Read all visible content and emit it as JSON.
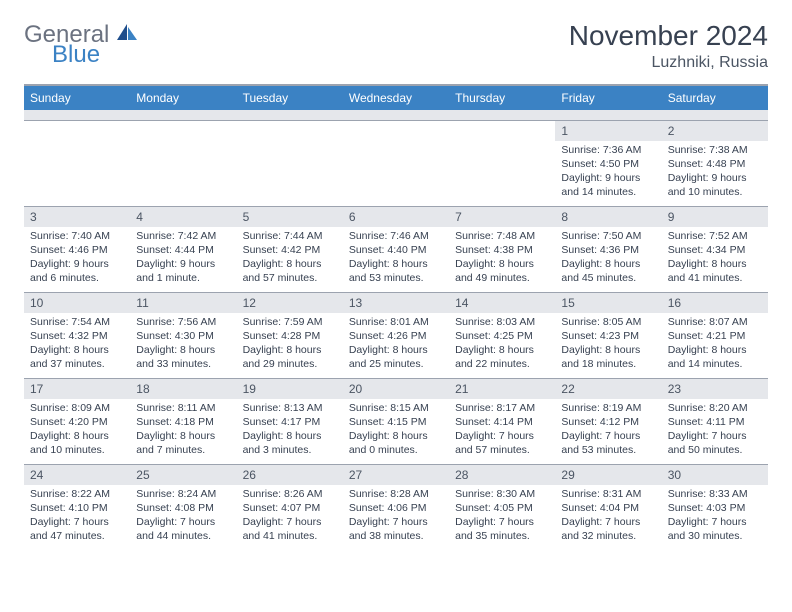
{
  "brand": {
    "name1": "General",
    "name2": "Blue"
  },
  "title": "November 2024",
  "location": "Luzhniki, Russia",
  "colors": {
    "header_bg": "#3b82c4",
    "header_text": "#ffffff",
    "daynum_bg": "#e5e7eb",
    "border": "#9ca3af",
    "text": "#374151",
    "logo_gray": "#6b7280",
    "logo_blue": "#3b82c4"
  },
  "layout": {
    "columns": 7,
    "rows": 5,
    "cell_fontsize": 10.5,
    "header_fontsize": 12,
    "title_fontsize": 28
  },
  "weekdays": [
    "Sunday",
    "Monday",
    "Tuesday",
    "Wednesday",
    "Thursday",
    "Friday",
    "Saturday"
  ],
  "weeks": [
    [
      {
        "n": "",
        "sr": "",
        "ss": "",
        "dl": ""
      },
      {
        "n": "",
        "sr": "",
        "ss": "",
        "dl": ""
      },
      {
        "n": "",
        "sr": "",
        "ss": "",
        "dl": ""
      },
      {
        "n": "",
        "sr": "",
        "ss": "",
        "dl": ""
      },
      {
        "n": "",
        "sr": "",
        "ss": "",
        "dl": ""
      },
      {
        "n": "1",
        "sr": "Sunrise: 7:36 AM",
        "ss": "Sunset: 4:50 PM",
        "dl": "Daylight: 9 hours and 14 minutes."
      },
      {
        "n": "2",
        "sr": "Sunrise: 7:38 AM",
        "ss": "Sunset: 4:48 PM",
        "dl": "Daylight: 9 hours and 10 minutes."
      }
    ],
    [
      {
        "n": "3",
        "sr": "Sunrise: 7:40 AM",
        "ss": "Sunset: 4:46 PM",
        "dl": "Daylight: 9 hours and 6 minutes."
      },
      {
        "n": "4",
        "sr": "Sunrise: 7:42 AM",
        "ss": "Sunset: 4:44 PM",
        "dl": "Daylight: 9 hours and 1 minute."
      },
      {
        "n": "5",
        "sr": "Sunrise: 7:44 AM",
        "ss": "Sunset: 4:42 PM",
        "dl": "Daylight: 8 hours and 57 minutes."
      },
      {
        "n": "6",
        "sr": "Sunrise: 7:46 AM",
        "ss": "Sunset: 4:40 PM",
        "dl": "Daylight: 8 hours and 53 minutes."
      },
      {
        "n": "7",
        "sr": "Sunrise: 7:48 AM",
        "ss": "Sunset: 4:38 PM",
        "dl": "Daylight: 8 hours and 49 minutes."
      },
      {
        "n": "8",
        "sr": "Sunrise: 7:50 AM",
        "ss": "Sunset: 4:36 PM",
        "dl": "Daylight: 8 hours and 45 minutes."
      },
      {
        "n": "9",
        "sr": "Sunrise: 7:52 AM",
        "ss": "Sunset: 4:34 PM",
        "dl": "Daylight: 8 hours and 41 minutes."
      }
    ],
    [
      {
        "n": "10",
        "sr": "Sunrise: 7:54 AM",
        "ss": "Sunset: 4:32 PM",
        "dl": "Daylight: 8 hours and 37 minutes."
      },
      {
        "n": "11",
        "sr": "Sunrise: 7:56 AM",
        "ss": "Sunset: 4:30 PM",
        "dl": "Daylight: 8 hours and 33 minutes."
      },
      {
        "n": "12",
        "sr": "Sunrise: 7:59 AM",
        "ss": "Sunset: 4:28 PM",
        "dl": "Daylight: 8 hours and 29 minutes."
      },
      {
        "n": "13",
        "sr": "Sunrise: 8:01 AM",
        "ss": "Sunset: 4:26 PM",
        "dl": "Daylight: 8 hours and 25 minutes."
      },
      {
        "n": "14",
        "sr": "Sunrise: 8:03 AM",
        "ss": "Sunset: 4:25 PM",
        "dl": "Daylight: 8 hours and 22 minutes."
      },
      {
        "n": "15",
        "sr": "Sunrise: 8:05 AM",
        "ss": "Sunset: 4:23 PM",
        "dl": "Daylight: 8 hours and 18 minutes."
      },
      {
        "n": "16",
        "sr": "Sunrise: 8:07 AM",
        "ss": "Sunset: 4:21 PM",
        "dl": "Daylight: 8 hours and 14 minutes."
      }
    ],
    [
      {
        "n": "17",
        "sr": "Sunrise: 8:09 AM",
        "ss": "Sunset: 4:20 PM",
        "dl": "Daylight: 8 hours and 10 minutes."
      },
      {
        "n": "18",
        "sr": "Sunrise: 8:11 AM",
        "ss": "Sunset: 4:18 PM",
        "dl": "Daylight: 8 hours and 7 minutes."
      },
      {
        "n": "19",
        "sr": "Sunrise: 8:13 AM",
        "ss": "Sunset: 4:17 PM",
        "dl": "Daylight: 8 hours and 3 minutes."
      },
      {
        "n": "20",
        "sr": "Sunrise: 8:15 AM",
        "ss": "Sunset: 4:15 PM",
        "dl": "Daylight: 8 hours and 0 minutes."
      },
      {
        "n": "21",
        "sr": "Sunrise: 8:17 AM",
        "ss": "Sunset: 4:14 PM",
        "dl": "Daylight: 7 hours and 57 minutes."
      },
      {
        "n": "22",
        "sr": "Sunrise: 8:19 AM",
        "ss": "Sunset: 4:12 PM",
        "dl": "Daylight: 7 hours and 53 minutes."
      },
      {
        "n": "23",
        "sr": "Sunrise: 8:20 AM",
        "ss": "Sunset: 4:11 PM",
        "dl": "Daylight: 7 hours and 50 minutes."
      }
    ],
    [
      {
        "n": "24",
        "sr": "Sunrise: 8:22 AM",
        "ss": "Sunset: 4:10 PM",
        "dl": "Daylight: 7 hours and 47 minutes."
      },
      {
        "n": "25",
        "sr": "Sunrise: 8:24 AM",
        "ss": "Sunset: 4:08 PM",
        "dl": "Daylight: 7 hours and 44 minutes."
      },
      {
        "n": "26",
        "sr": "Sunrise: 8:26 AM",
        "ss": "Sunset: 4:07 PM",
        "dl": "Daylight: 7 hours and 41 minutes."
      },
      {
        "n": "27",
        "sr": "Sunrise: 8:28 AM",
        "ss": "Sunset: 4:06 PM",
        "dl": "Daylight: 7 hours and 38 minutes."
      },
      {
        "n": "28",
        "sr": "Sunrise: 8:30 AM",
        "ss": "Sunset: 4:05 PM",
        "dl": "Daylight: 7 hours and 35 minutes."
      },
      {
        "n": "29",
        "sr": "Sunrise: 8:31 AM",
        "ss": "Sunset: 4:04 PM",
        "dl": "Daylight: 7 hours and 32 minutes."
      },
      {
        "n": "30",
        "sr": "Sunrise: 8:33 AM",
        "ss": "Sunset: 4:03 PM",
        "dl": "Daylight: 7 hours and 30 minutes."
      }
    ]
  ]
}
